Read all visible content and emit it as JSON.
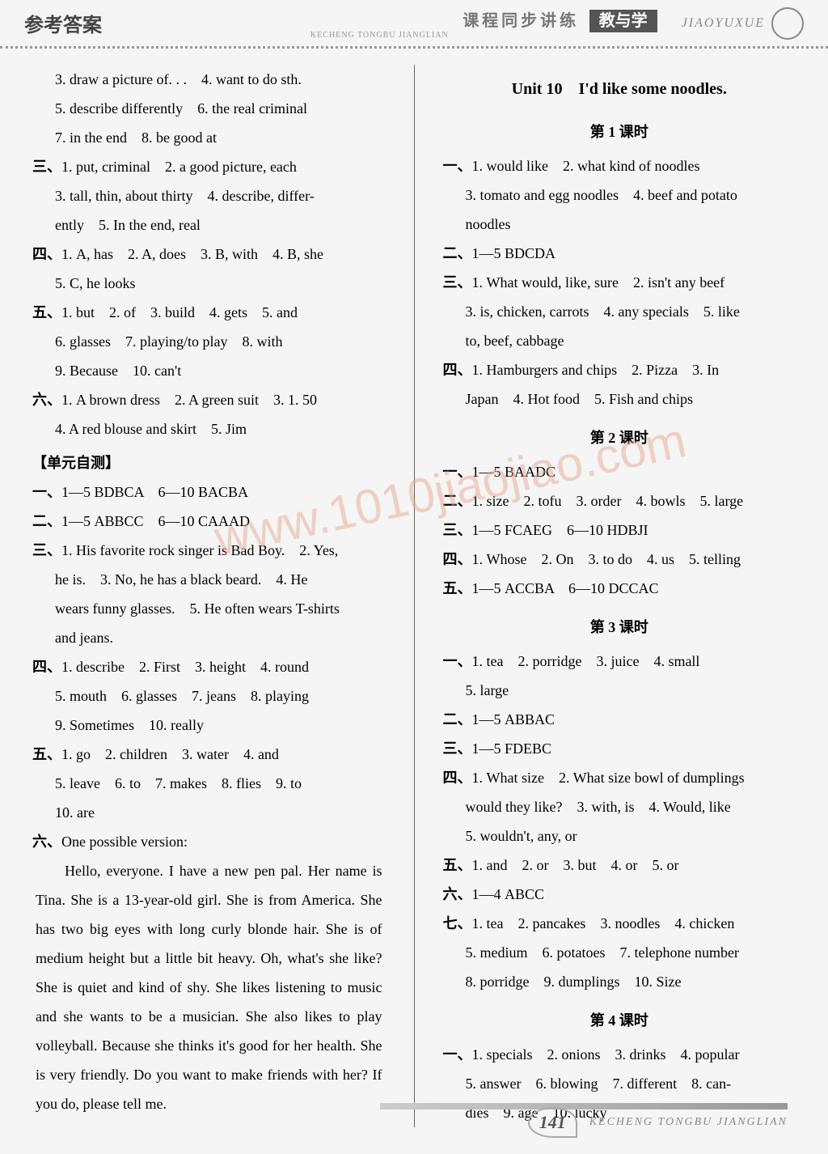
{
  "header": {
    "left": "参考答案",
    "center": "课程同步讲练",
    "badge": "教与学",
    "right": "JIAOYUXUE",
    "pinyin": "KECHENG TONGBU JIANGLIAN"
  },
  "watermark": "www.1010jiaojiao.com",
  "left_col": {
    "l1": "3. draw a picture of. . .　4. want to do sth.",
    "l2": "5. describe differently　6. the real criminal",
    "l3": "7. in the end　8. be good at",
    "s3_1": "三、1. put, criminal　2. a good picture, each",
    "s3_2": "3. tall, thin, about thirty　4. describe, differ-",
    "s3_3": "ently　5. In the end, real",
    "s4_1": "四、1. A, has　2. A, does　3. B, with　4. B, she",
    "s4_2": "5. C, he looks",
    "s5_1": "五、1. but　2. of　3. build　4. gets　5. and",
    "s5_2": "6. glasses　7. playing/to play　8. with",
    "s5_3": "9. Because　10. can't",
    "s6_1": "六、1. A brown dress　2. A green suit　3. 1. 50",
    "s6_2": "4. A red blouse and skirt　5. Jim",
    "test_title": "【单元自测】",
    "t1": "一、1—5 BDBCA　6—10 BACBA",
    "t2": "二、1—5 ABBCC　6—10 CAAAD",
    "t3_1": "三、1. His favorite rock singer is Bad Boy.　2. Yes,",
    "t3_2": "he is.　3. No, he has a black beard.　4. He",
    "t3_3": "wears funny glasses.　5. He often wears T-shirts",
    "t3_4": "and jeans.",
    "t4_1": "四、1. describe　2. First　3. height　4. round",
    "t4_2": "5. mouth　6. glasses　7. jeans　8. playing",
    "t4_3": "9. Sometimes　10. really",
    "t5_1": "五、1. go　2. children　3. water　4. and",
    "t5_2": "5. leave　6. to　7. makes　8. flies　9. to",
    "t5_3": "10. are",
    "t6_1": "六、One possible version:",
    "essay": "Hello, everyone. I have a new pen pal. Her name is Tina. She is a 13-year-old girl. She is from America. She has two big eyes with long curly blonde hair. She is of medium height but a little bit heavy. Oh, what's she like? She is quiet and kind of shy. She likes listening to music and she wants to be a musician. She also likes to play volleyball. Because she thinks it's good for her health. She is very friendly. Do you want to make friends with her? If you do, please tell me."
  },
  "right_col": {
    "unit_title": "Unit 10　I'd like some noodles.",
    "l1_title": "第 1 课时",
    "l1_1": "一、1. would like　2. what kind of noodles",
    "l1_2": "3. tomato and egg noodles　4. beef and potato",
    "l1_3": "noodles",
    "l1_4": "二、1—5 BDCDA",
    "l1_5": "三、1. What would, like, sure　2. isn't any beef",
    "l1_6": "3. is, chicken, carrots　4. any specials　5. like",
    "l1_7": "to, beef, cabbage",
    "l1_8": "四、1. Hamburgers and chips　2. Pizza　3. In",
    "l1_9": "Japan　4. Hot food　5. Fish and chips",
    "l2_title": "第 2 课时",
    "l2_1": "一、1—5 BAADC",
    "l2_2": "二、1. size　2. tofu　3. order　4. bowls　5. large",
    "l2_3": "三、1—5 FCAEG　6—10 HDBJI",
    "l2_4": "四、1. Whose　2. On　3. to do　4. us　5. telling",
    "l2_5": "五、1—5 ACCBA　6—10 DCCAC",
    "l3_title": "第 3 课时",
    "l3_1": "一、1. tea　2. porridge　3. juice　4. small",
    "l3_2": "5. large",
    "l3_3": "二、1—5 ABBAC",
    "l3_4": "三、1—5 FDEBC",
    "l3_5": "四、1. What size　2. What size bowl of dumplings",
    "l3_6": "would they like?　3. with, is　4. Would, like",
    "l3_7": "5. wouldn't, any, or",
    "l3_8": "五、1. and　2. or　3. but　4. or　5. or",
    "l3_9": "六、1—4 ABCC",
    "l3_10": "七、1. tea　2. pancakes　3. noodles　4. chicken",
    "l3_11": "5. medium　6. potatoes　7. telephone number",
    "l3_12": "8. porridge　9. dumplings　10. Size",
    "l4_title": "第 4 课时",
    "l4_1": "一、1. specials　2. onions　3. drinks　4. popular",
    "l4_2": "5. answer　6. blowing　7. different　8. can-",
    "l4_3": "dies　9. age　10. lucky"
  },
  "footer": {
    "page": "141",
    "text": "KECHENG TONGBU JIANGLIAN"
  }
}
